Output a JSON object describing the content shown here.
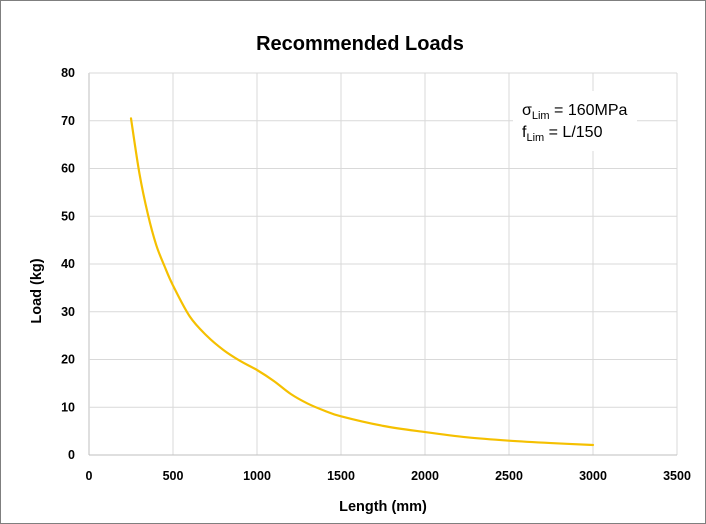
{
  "chart_data": {
    "type": "line",
    "title": "Recommended Loads",
    "xlabel": "Length (mm)",
    "ylabel": "Load (kg)",
    "xlim": [
      0,
      3500
    ],
    "ylim": [
      0,
      80
    ],
    "x_ticks": [
      0,
      500,
      1000,
      1500,
      2000,
      2500,
      3000,
      3500
    ],
    "y_ticks": [
      0,
      10,
      20,
      30,
      40,
      50,
      60,
      70,
      80
    ],
    "grid": true,
    "legend": "none",
    "series": [
      {
        "color": "#f5c000",
        "x": [
          250,
          300,
          350,
          400,
          450,
          500,
          600,
          700,
          800,
          900,
          1000,
          1100,
          1200,
          1300,
          1400,
          1500,
          1750,
          2000,
          2250,
          2500,
          2750,
          3000
        ],
        "y": [
          70.5,
          59,
          50.5,
          44,
          39.5,
          35.5,
          29,
          25,
          22,
          19.7,
          17.8,
          15.5,
          12.8,
          10.8,
          9.3,
          8.1,
          6.1,
          4.8,
          3.7,
          3.0,
          2.5,
          2.1
        ]
      }
    ],
    "annotations": {
      "line1_main": "σ",
      "line1_sub": "Lim",
      "line1_rest": " = 160MPa",
      "line2_main": "f",
      "line2_sub": "Lim",
      "line2_rest": " = L/150"
    }
  }
}
